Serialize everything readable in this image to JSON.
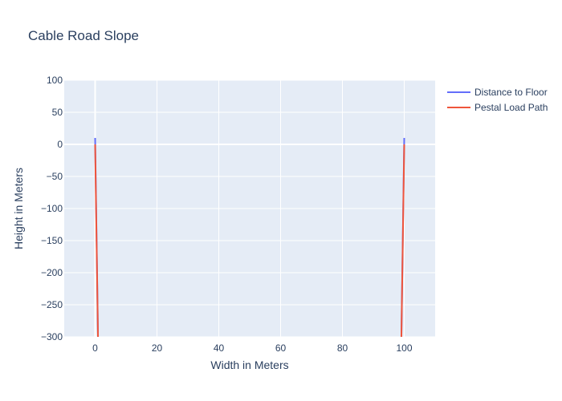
{
  "chart_data": {
    "type": "line",
    "title": "Cable Road Slope",
    "xlabel": "Width in Meters",
    "ylabel": "Height in Meters",
    "xlim": [
      -10,
      110
    ],
    "ylim": [
      -300,
      100
    ],
    "x_ticks": [
      "0",
      "20",
      "40",
      "60",
      "80",
      "100"
    ],
    "y_ticks": [
      "100",
      "50",
      "0",
      "−50",
      "−100",
      "−150",
      "−200",
      "−250",
      "−300"
    ],
    "grid": true,
    "legend_position": "top-right",
    "series": [
      {
        "name": "Distance to Floor",
        "color": "#636efa",
        "points": [
          [
            0,
            10
          ],
          [
            0.95,
            -310
          ],
          [
            99.05,
            -310
          ],
          [
            100,
            10
          ]
        ]
      },
      {
        "name": "Pestal Load Path",
        "color": "#ef553b",
        "points": [
          [
            0,
            0
          ],
          [
            0.95,
            -310
          ],
          [
            99.05,
            -310
          ],
          [
            100,
            0
          ]
        ]
      }
    ]
  }
}
